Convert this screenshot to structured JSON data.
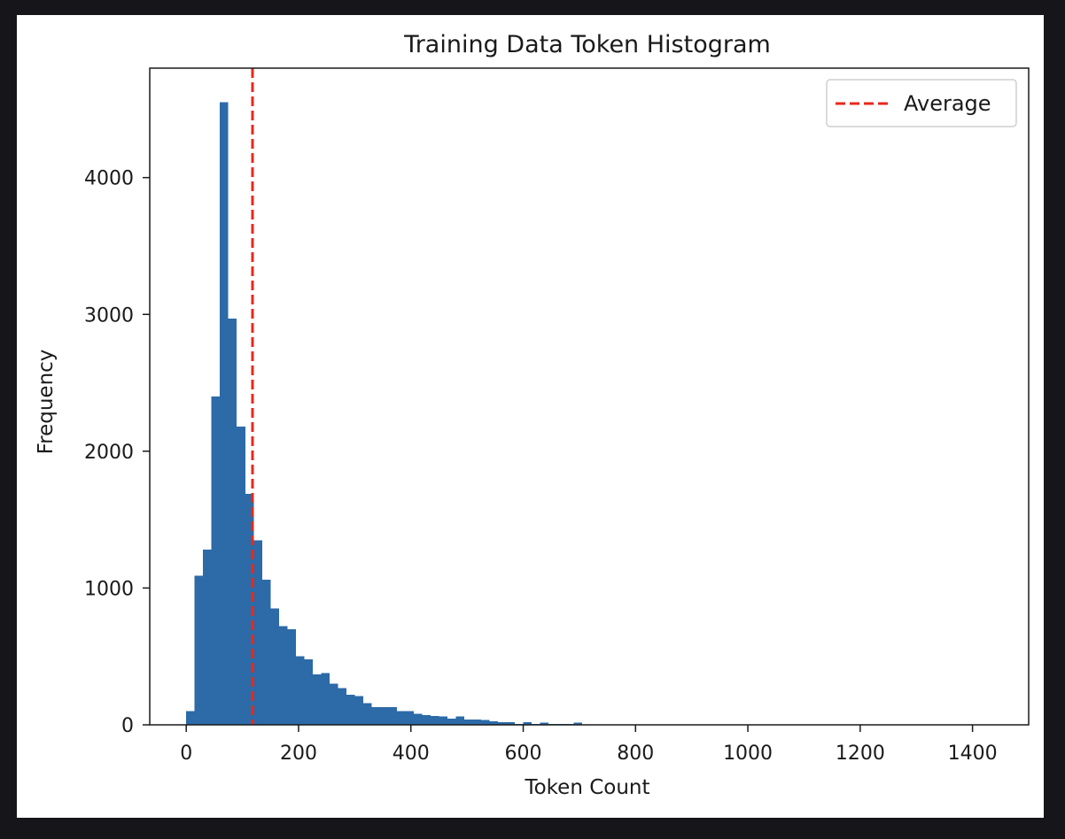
{
  "chart_data": {
    "type": "bar",
    "title": "Training Data Token Histogram",
    "xlabel": "Token Count",
    "ylabel": "Frequency",
    "xlim": [
      -65,
      1500
    ],
    "ylim": [
      0,
      4800
    ],
    "xticks": [
      0,
      200,
      400,
      600,
      800,
      1000,
      1200,
      1400
    ],
    "yticks": [
      0,
      1000,
      2000,
      3000,
      4000
    ],
    "grid": false,
    "legend": {
      "placement": "top-right",
      "entries": [
        "Average"
      ]
    },
    "bin_width": 15,
    "bins_start": [
      0,
      15,
      30,
      45,
      60,
      75,
      90,
      105,
      120,
      135,
      150,
      165,
      180,
      195,
      210,
      225,
      240,
      255,
      270,
      285,
      300,
      315,
      330,
      345,
      360,
      375,
      390,
      405,
      420,
      435,
      450,
      465,
      480,
      495,
      510,
      525,
      540,
      555,
      570,
      585,
      600,
      615,
      630,
      645,
      660,
      675,
      690
    ],
    "counts": [
      100,
      1090,
      1280,
      2400,
      4550,
      2970,
      2180,
      1690,
      1350,
      1060,
      850,
      720,
      700,
      500,
      480,
      370,
      380,
      300,
      270,
      220,
      210,
      160,
      130,
      130,
      130,
      100,
      100,
      80,
      70,
      65,
      60,
      45,
      60,
      40,
      40,
      35,
      25,
      20,
      20,
      5,
      20,
      5,
      15,
      5,
      5,
      5,
      15
    ],
    "average": 118,
    "colors": {
      "bars": "#2c6aa8",
      "average_line": "#e8291c"
    }
  }
}
